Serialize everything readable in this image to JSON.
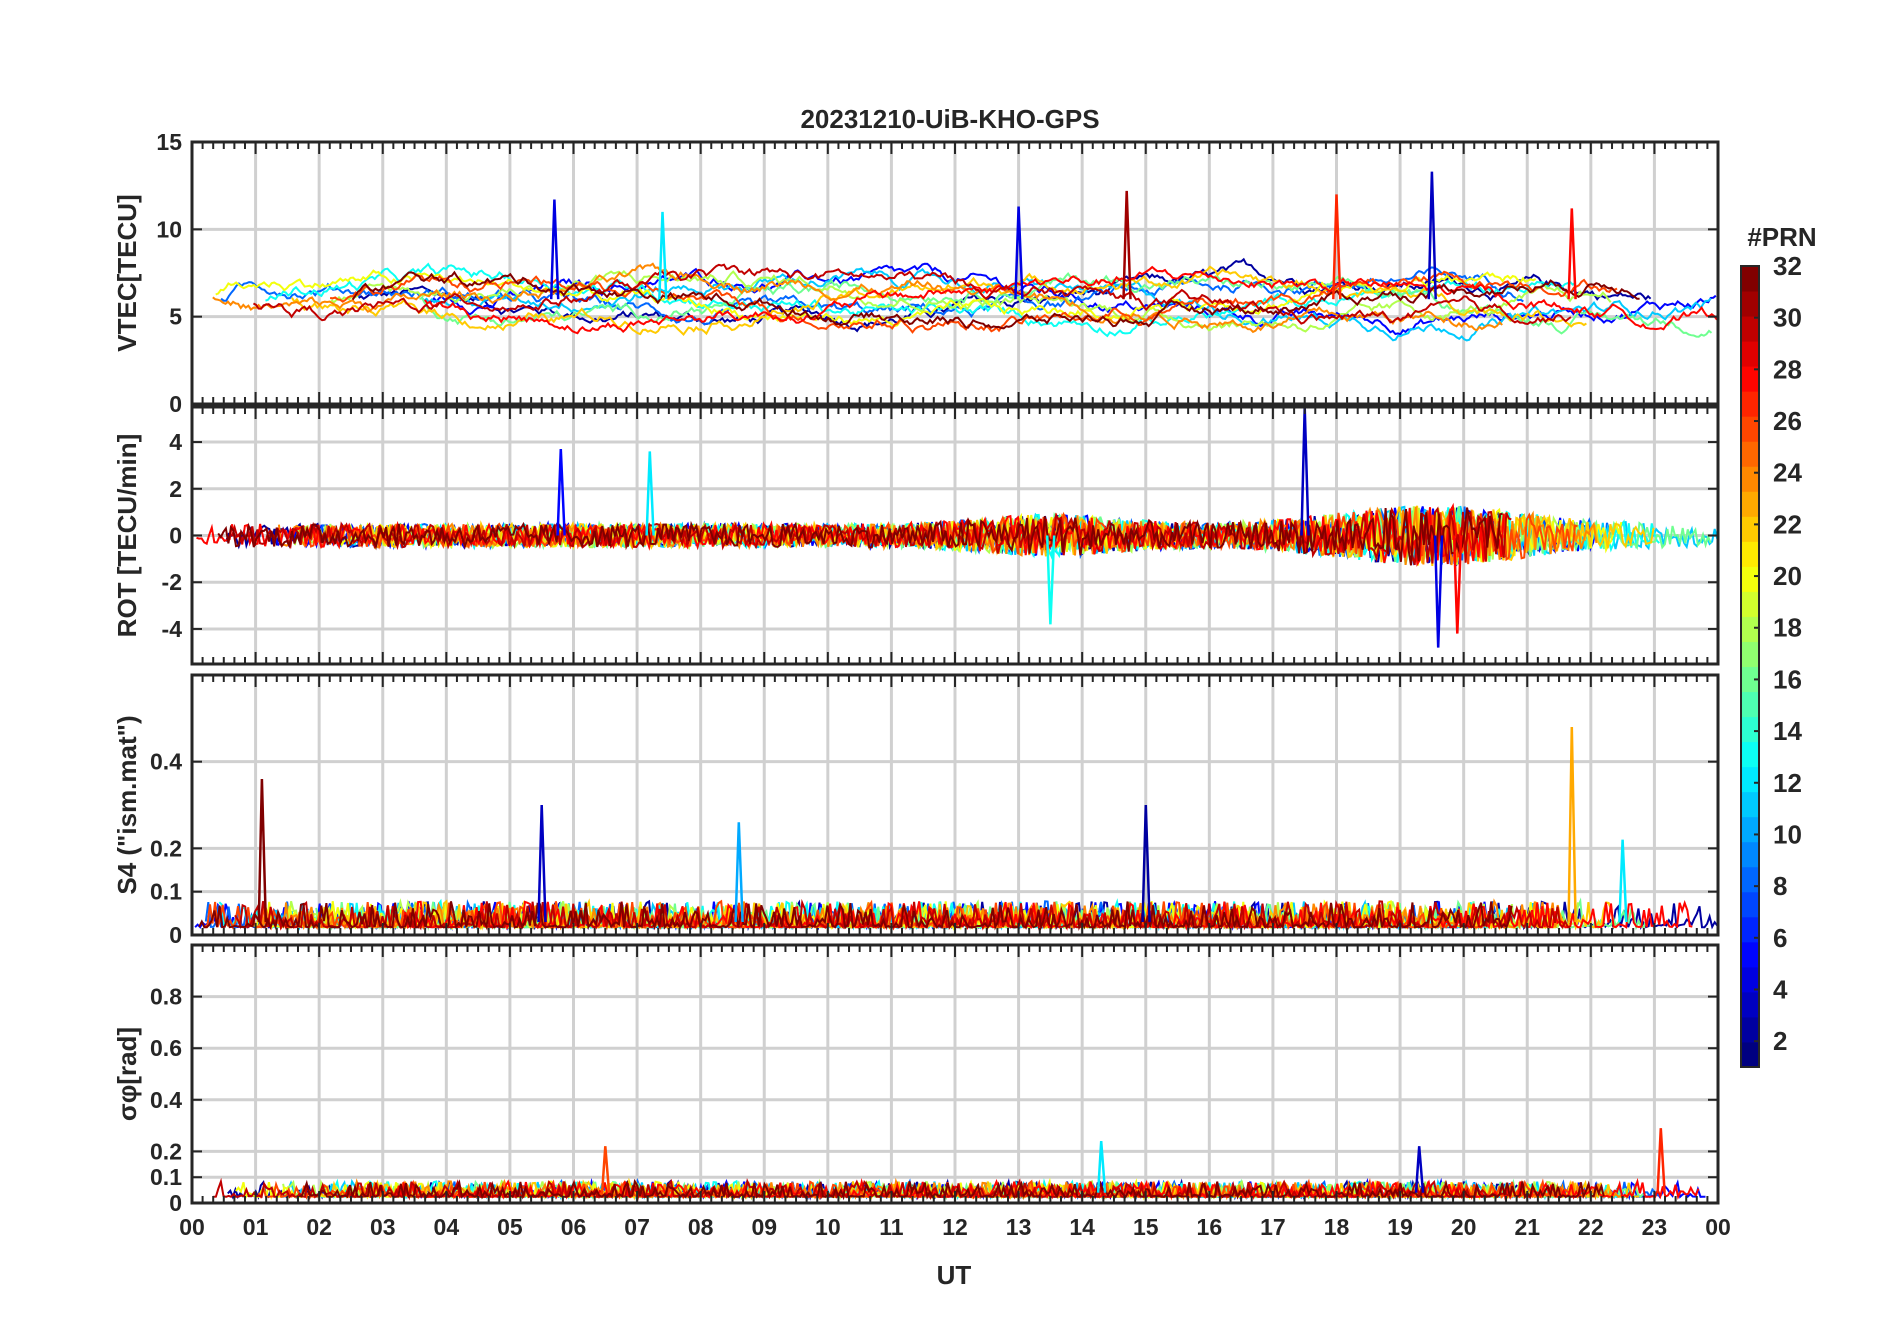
{
  "chart_data": {
    "type": "line",
    "title": "20231210-UiB-KHO-GPS",
    "xlabel": "UT",
    "x_ticks": [
      "00",
      "01",
      "02",
      "03",
      "04",
      "05",
      "06",
      "07",
      "08",
      "09",
      "10",
      "11",
      "12",
      "13",
      "14",
      "15",
      "16",
      "17",
      "18",
      "19",
      "20",
      "21",
      "22",
      "23",
      "00"
    ],
    "xlim_hours": [
      0,
      24
    ],
    "colorbar": {
      "label": "#PRN",
      "range": [
        1,
        32
      ],
      "ticks": [
        "2",
        "4",
        "6",
        "8",
        "10",
        "12",
        "14",
        "16",
        "18",
        "20",
        "22",
        "24",
        "26",
        "28",
        "30",
        "32"
      ]
    },
    "panels": [
      {
        "id": "vtec",
        "ylabel": "VTEC[TECU]",
        "ylim": [
          0,
          15
        ],
        "y_ticks": [
          0,
          5,
          10,
          15
        ],
        "y_tick_labels": [
          "0",
          "5",
          "10",
          "15"
        ],
        "baseline": 6,
        "noise": 1.2,
        "features": [
          {
            "hour": 5.7,
            "value": 11.7,
            "prn": 4
          },
          {
            "hour": 7.4,
            "value": 11.0,
            "prn": 12
          },
          {
            "hour": 13.0,
            "value": 11.3,
            "prn": 4
          },
          {
            "hour": 14.7,
            "value": 12.2,
            "prn": 31
          },
          {
            "hour": 18.0,
            "value": 12.0,
            "prn": 27
          },
          {
            "hour": 19.5,
            "value": 13.3,
            "prn": 3
          },
          {
            "hour": 21.7,
            "value": 11.2,
            "prn": 28
          }
        ]
      },
      {
        "id": "rot",
        "ylabel": "ROT [TECU/min]",
        "ylim": [
          -5.5,
          5.5
        ],
        "y_ticks": [
          -4,
          -2,
          0,
          2,
          4
        ],
        "y_tick_labels": [
          "-4",
          "-2",
          "0",
          "2",
          "4"
        ],
        "baseline": 0,
        "noise": 1.0,
        "features": [
          {
            "hour": 5.8,
            "value": 3.7,
            "prn": 5
          },
          {
            "hour": 7.2,
            "value": 3.6,
            "prn": 12
          },
          {
            "hour": 13.5,
            "value": -3.8,
            "prn": 13
          },
          {
            "hour": 17.5,
            "value": 5.5,
            "prn": 3
          },
          {
            "hour": 19.6,
            "value": -4.8,
            "prn": 4
          },
          {
            "hour": 19.9,
            "value": -4.2,
            "prn": 28
          }
        ]
      },
      {
        "id": "s4",
        "ylabel": "S4 (\"ism.mat\")",
        "ylim": [
          0,
          0.6
        ],
        "y_ticks": [
          0,
          0.1,
          0.2,
          0.4
        ],
        "y_tick_labels": [
          "0",
          "0.1",
          "0.2",
          "0.4"
        ],
        "baseline": 0.03,
        "noise": 0.03,
        "features": [
          {
            "hour": 1.1,
            "value": 0.36,
            "prn": 32
          },
          {
            "hour": 5.5,
            "value": 0.3,
            "prn": 3
          },
          {
            "hour": 8.6,
            "value": 0.26,
            "prn": 10
          },
          {
            "hour": 15.0,
            "value": 0.3,
            "prn": 2
          },
          {
            "hour": 21.7,
            "value": 0.48,
            "prn": 23
          },
          {
            "hour": 22.5,
            "value": 0.22,
            "prn": 12
          }
        ]
      },
      {
        "id": "sigma_phi",
        "ylabel": "σφ[rad]",
        "ylim": [
          0,
          1
        ],
        "y_ticks": [
          0,
          0.1,
          0.2,
          0.4,
          0.6,
          0.8
        ],
        "y_tick_labels": [
          "0",
          "0.1",
          "0.2",
          "0.4",
          "0.6",
          "0.8"
        ],
        "baseline": 0.04,
        "noise": 0.03,
        "features": [
          {
            "hour": 6.5,
            "value": 0.22,
            "prn": 26
          },
          {
            "hour": 14.3,
            "value": 0.24,
            "prn": 12
          },
          {
            "hour": 19.3,
            "value": 0.22,
            "prn": 3
          },
          {
            "hour": 23.1,
            "value": 0.29,
            "prn": 27
          }
        ]
      }
    ]
  }
}
